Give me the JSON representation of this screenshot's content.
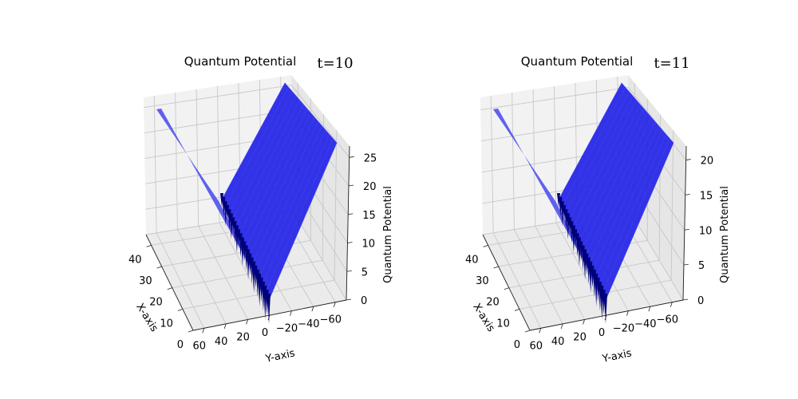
{
  "chart_data": [
    {
      "type": "surface3d",
      "title": "Quantum Potential",
      "time_label": "t=10",
      "xlabel": "X-axis",
      "ylabel": "Y-axis",
      "zlabel": "Quantum Potential",
      "x_ticks": [
        "0",
        "10",
        "20",
        "30",
        "40"
      ],
      "y_ticks": [
        "60",
        "40",
        "20",
        "0",
        "−20",
        "−40",
        "−60"
      ],
      "z_ticks": [
        "0",
        "5",
        "10",
        "15",
        "20",
        "25"
      ],
      "xlim": [
        0,
        45
      ],
      "ylim": [
        -70,
        70
      ],
      "zlim": [
        0,
        27
      ],
      "surface_color": "#2323e6"
    },
    {
      "type": "surface3d",
      "title": "Quantum Potential",
      "time_label": "t=11",
      "xlabel": "X-axis",
      "ylabel": "Y-axis",
      "zlabel": "Quantum Potential",
      "x_ticks": [
        "0",
        "10",
        "20",
        "30",
        "40"
      ],
      "y_ticks": [
        "60",
        "40",
        "20",
        "0",
        "−20",
        "−40",
        "−60"
      ],
      "z_ticks": [
        "0",
        "5",
        "10",
        "15",
        "20"
      ],
      "xlim": [
        0,
        45
      ],
      "ylim": [
        -70,
        70
      ],
      "zlim": [
        0,
        22
      ],
      "surface_color": "#2323e6"
    }
  ]
}
